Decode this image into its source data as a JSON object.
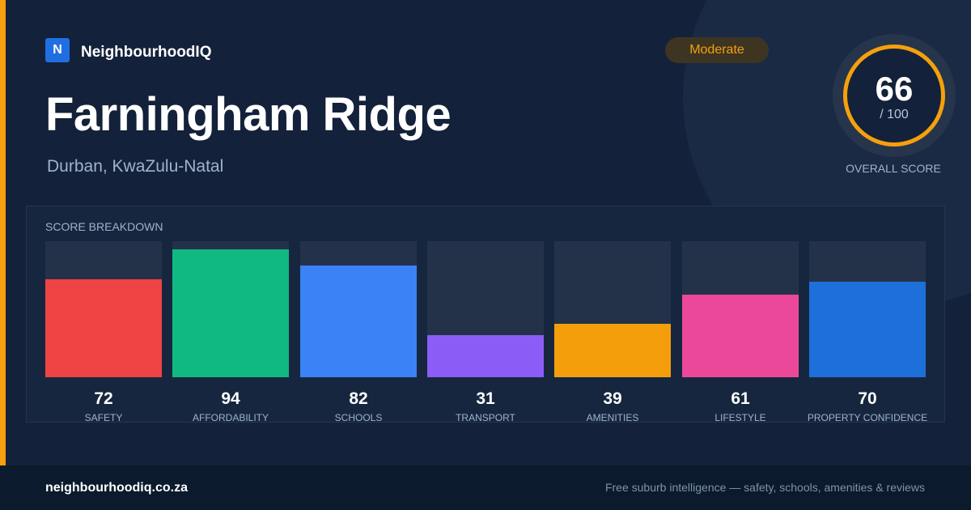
{
  "brand": {
    "logo_letter": "N",
    "name": "NeighbourhoodIQ"
  },
  "suburb": {
    "name": "Farningham Ridge",
    "location": "Durban, KwaZulu-Natal"
  },
  "rating": {
    "label": "Moderate",
    "color": "#f5a00c"
  },
  "overall_score": {
    "value": "66",
    "max": "/ 100",
    "caption": "OVERALL SCORE"
  },
  "breakdown": {
    "title": "SCORE BREAKDOWN",
    "scale_max": 100,
    "items": [
      {
        "label": "SAFETY",
        "value": 72,
        "color": "#ef4444"
      },
      {
        "label": "AFFORDABILITY",
        "value": 94,
        "color": "#10b981"
      },
      {
        "label": "SCHOOLS",
        "value": 82,
        "color": "#3b82f6"
      },
      {
        "label": "TRANSPORT",
        "value": 31,
        "color": "#8b5cf6"
      },
      {
        "label": "AMENITIES",
        "value": 39,
        "color": "#f59e0b"
      },
      {
        "label": "LIFESTYLE",
        "value": 61,
        "color": "#ec4899"
      },
      {
        "label": "PROPERTY CONFIDENCE",
        "value": 70,
        "color": "#1d6fd9"
      }
    ]
  },
  "footer": {
    "url": "neighbourhoodiq.co.za",
    "tagline": "Free suburb intelligence — safety, schools, amenities & reviews"
  }
}
